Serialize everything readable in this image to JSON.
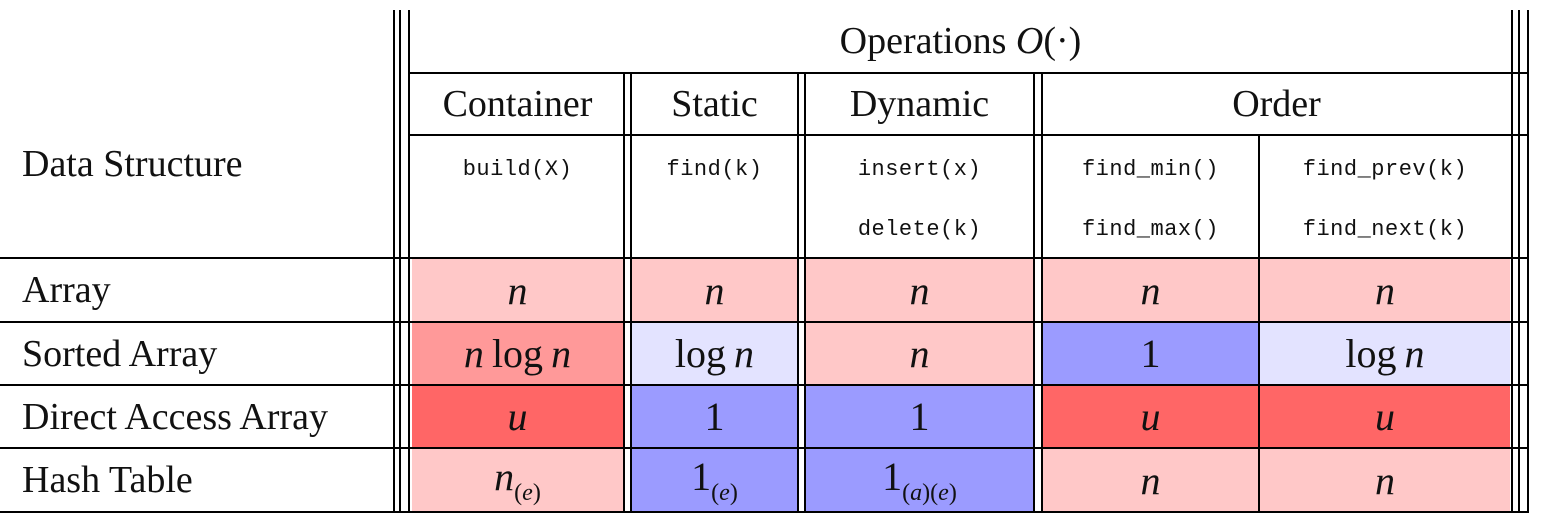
{
  "header": {
    "data_structure": "Data Structure",
    "operations_prefix": "Operations",
    "operations_symbol": "O",
    "operations_arg": "(·)",
    "groups": [
      "Container",
      "Static",
      "Dynamic",
      "Order"
    ],
    "ops": {
      "build": "build(X)",
      "find": "find(k)",
      "insert": "insert(x)",
      "delete": "delete(k)",
      "find_min": "find_min()",
      "find_max": "find_max()",
      "find_prev": "find_prev(k)",
      "find_next": "find_next(k)"
    }
  },
  "rows": [
    {
      "label": "Array",
      "cells": [
        "n",
        "n",
        "n",
        "n",
        "n"
      ]
    },
    {
      "label": "Sorted Array",
      "cells": [
        "n log n",
        "log n",
        "n",
        "1",
        "log n"
      ]
    },
    {
      "label": "Direct Access Array",
      "cells": [
        "u",
        "1",
        "1",
        "u",
        "u"
      ]
    },
    {
      "label": "Hash Table",
      "cells": [
        "n(e)",
        "1(e)",
        "1(a)(e)",
        "n",
        "n"
      ]
    }
  ],
  "colors": {
    "light_red": "#ffc8c8",
    "medium_red": "#ff9999",
    "strong_red": "#ff6666",
    "light_blue": "#e3e3ff",
    "strong_blue": "#9b9bff"
  }
}
